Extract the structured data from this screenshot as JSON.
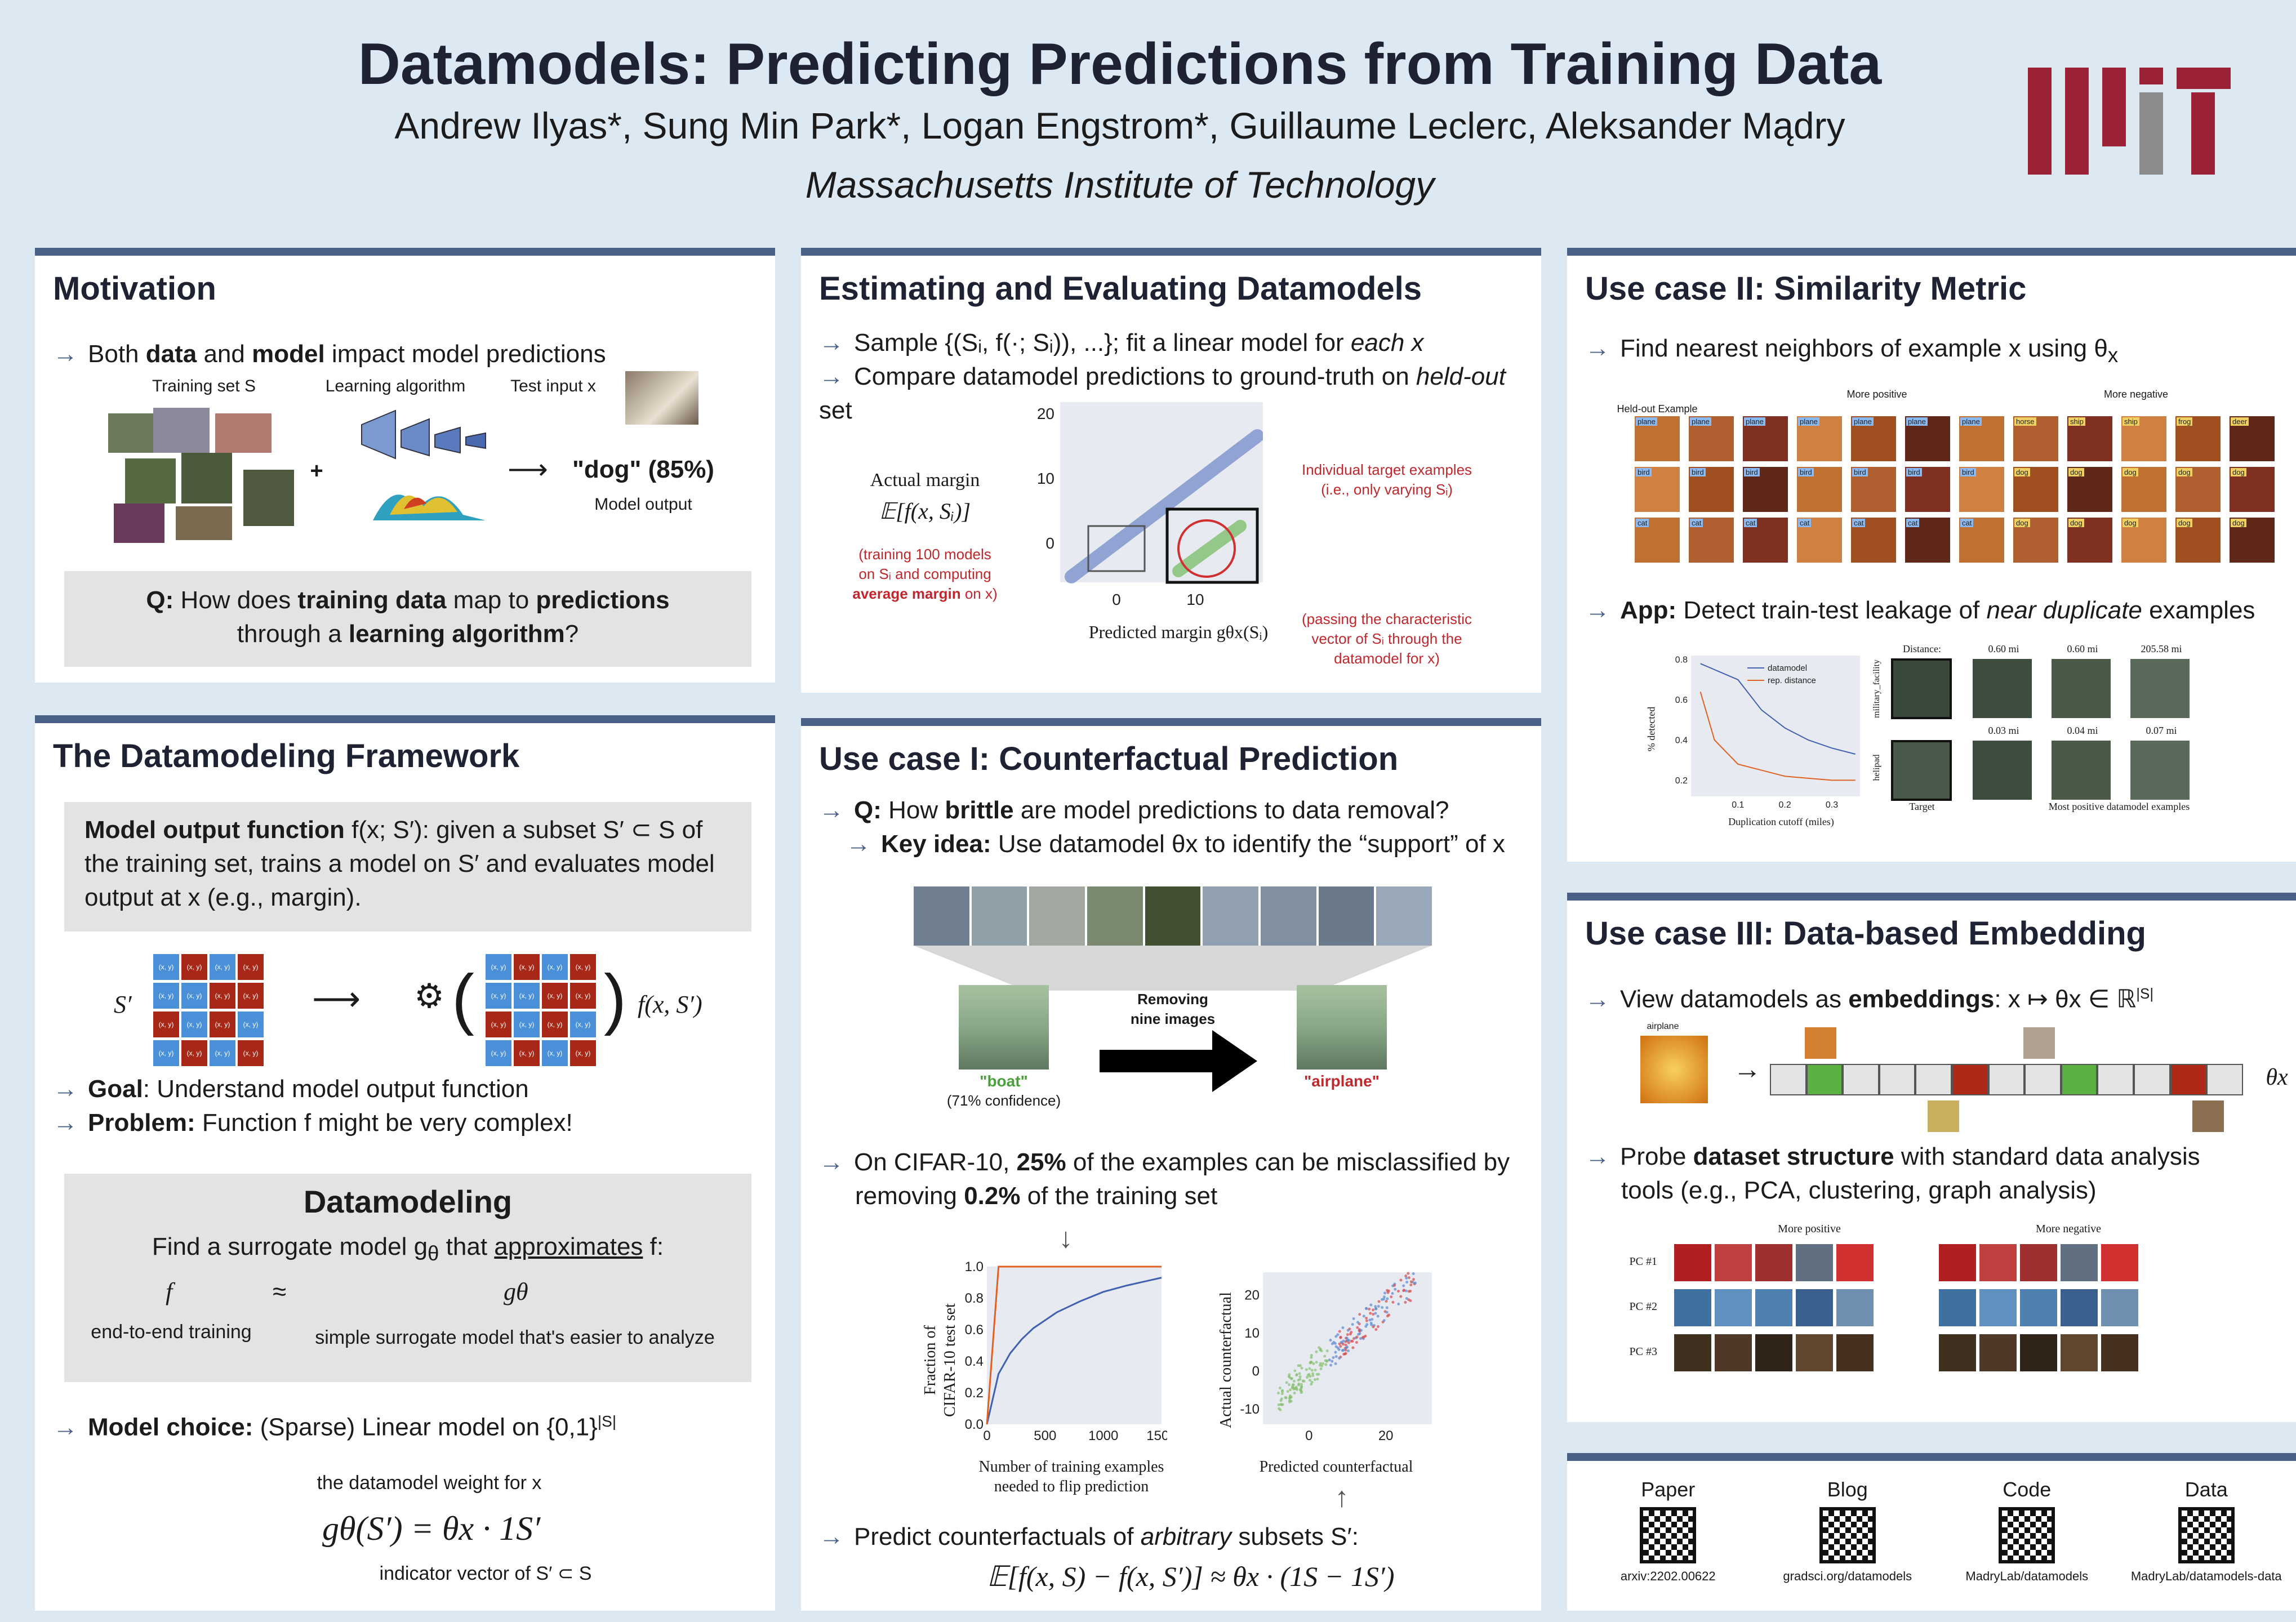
{
  "header": {
    "title": "Datamodels: Predicting Predictions from Training Data",
    "authors": "Andrew Ilyas*, Sung Min Park*, Logan Engstrom*, Guillaume Leclerc, Aleksander Mądry",
    "institution": "Massachusetts Institute of Technology",
    "logo": "mit-logo",
    "colors": {
      "logo_red": "#9c2337",
      "logo_gray": "#8b8b8b",
      "accent": "#4a6088",
      "background": "#dce8f2"
    }
  },
  "motivation": {
    "title": "Motivation",
    "bullet_pre": "Both ",
    "bullet_b1": "data",
    "bullet_mid": " and ",
    "bullet_b2": "model",
    "bullet_post": " impact model predictions",
    "label_training": "Training set S",
    "label_algorithm": "Learning algorithm",
    "label_test": "Test input x",
    "plus": "+",
    "output": "\"dog\" (85%)",
    "output_label": "Model output",
    "q_label": "Q:",
    "q_pre": " How does ",
    "q_b1": "training data",
    "q_mid": " map to ",
    "q_b2": "predictions",
    "q_line2_pre": "through a ",
    "q_b3": "learning algorithm",
    "q_line2_post": "?"
  },
  "framework": {
    "title": "The Datamodeling Framework",
    "box_b": "Model output function",
    "box_fn": " f(x; S′)",
    "box_line1": ": given a subset S′ ⊂ S of",
    "box_line2": "the training set, trains a model on S′ and evaluates model",
    "box_line3": "output at x (e.g., margin).",
    "s_prime": "S′",
    "fx": "f(x, S′)",
    "cell": "(x, y)",
    "goal_b": "Goal",
    "goal": ": Understand model output function",
    "problem_b": "Problem:",
    "problem": " Function f might be very complex!",
    "dm_title": "Datamodeling",
    "dm_line_pre": "Find a surrogate model g",
    "dm_sub": "θ",
    "dm_line_mid": " that ",
    "dm_line_u": "approximates",
    "dm_line_post": " f:",
    "dm_f": "f",
    "dm_approx": "≈",
    "dm_g": "gθ",
    "dm_f_label": "end-to-end training",
    "dm_g_label": "simple surrogate model that's easier to analyze",
    "choice_b": "Model choice:",
    "choice": " (Sparse) Linear model on {0,1}",
    "choice_sup": "|S|",
    "weight_label": "the datamodel weight for x",
    "formula": "gθ(S′) = θx · 1S′",
    "indicator_label": "indicator vector of S′ ⊂ S"
  },
  "estimating": {
    "title": "Estimating and Evaluating Datamodels",
    "b1_pre": "Sample {(Sᵢ, f(·; Sᵢ)), ...}; fit a linear model for ",
    "b1_i": "each x",
    "b2_pre": "Compare datamodel predictions to ground-truth on ",
    "b2_i": "held-out",
    "b2_post": " set",
    "ylabel": "Actual margin",
    "ylabel2": "𝔼[f(x, Sᵢ)]",
    "note_left_1": "(training 100 models",
    "note_left_2": "on Sᵢ and computing",
    "note_left_3": "average margin",
    "note_left_4": " on x)",
    "xlabel": "Predicted margin gθx(Sᵢ)",
    "note_right_top_1": "Individual target examples",
    "note_right_top_2": "(i.e., only varying Sᵢ)",
    "note_right_bot_1": "(passing the characteristic",
    "note_right_bot_2": "vector of Sᵢ through the",
    "note_right_bot_3": "datamodel for x)",
    "yticks": [
      "20",
      "10",
      "0"
    ],
    "xticks": [
      "0",
      "10"
    ]
  },
  "counterfactual": {
    "title": "Use case I: Counterfactual Prediction",
    "q_b": "Q:",
    "q_pre": " How ",
    "q_b2": "brittle",
    "q_post": " are model predictions to data removal?",
    "key_b": "Key idea:",
    "key": " Use datamodel θx to identify the “support” of x",
    "removing": "Removing",
    "nine": "nine images",
    "boat": "\"boat\"",
    "boat_conf": "(71% confidence)",
    "airplane": "\"airplane\"",
    "cifar_pre": "On CIFAR-10, ",
    "cifar_b1": "25%",
    "cifar_mid": " of the examples can be misclassified by",
    "cifar_line2_pre": "removing ",
    "cifar_b2": "0.2%",
    "cifar_line2_post": " of the training set",
    "chart1_ylabel_1": "Fraction of",
    "chart1_ylabel_2": "CIFAR-10 test set",
    "chart1_xlabel_1": "Number of training examples",
    "chart1_xlabel_2": "needed to flip prediction",
    "chart2_ylabel": "Actual counterfactual",
    "chart2_xlabel": "Predicted counterfactual",
    "predict_pre": "Predict counterfactuals of ",
    "predict_i": "arbitrary",
    "predict_post": " subsets S′:",
    "formula": "𝔼[f(x, S) − f(x, S′)] ≈ θx · (1S − 1S′)"
  },
  "chart_data": [
    {
      "type": "line",
      "x": [
        0,
        100,
        200,
        300,
        400,
        500,
        600,
        800,
        1000,
        1200,
        1500
      ],
      "series": [
        {
          "values": [
            0.0,
            0.32,
            0.45,
            0.54,
            0.61,
            0.66,
            0.71,
            0.78,
            0.84,
            0.88,
            0.93
          ]
        },
        {
          "values": [
            0.0,
            1.0,
            1.0,
            1.0,
            1.0,
            1.0,
            1.0,
            1.0,
            1.0,
            1.0,
            1.0
          ]
        }
      ],
      "xticks": [
        "0",
        "500",
        "1000",
        "1500"
      ],
      "yticks": [
        "0.0",
        "0.2",
        "0.4",
        "0.6",
        "0.8",
        "1.0"
      ],
      "xlim": [
        0,
        1500
      ],
      "ylim": [
        0,
        1
      ],
      "colors": [
        "#4060b0",
        "#e06020"
      ]
    },
    {
      "type": "scatter",
      "xticks": [
        "0",
        "20"
      ],
      "yticks": [
        "-10",
        "0",
        "10",
        "20"
      ],
      "xlim": [
        -12,
        32
      ],
      "ylim": [
        -14,
        26
      ],
      "colors": [
        "#d84848",
        "#5a8ad0",
        "#88c070"
      ]
    },
    {
      "type": "line",
      "x": [
        0.02,
        0.05,
        0.1,
        0.15,
        0.2,
        0.25,
        0.3,
        0.35
      ],
      "series": [
        {
          "name": "datamodel",
          "values": [
            0.78,
            0.75,
            0.7,
            0.55,
            0.46,
            0.4,
            0.36,
            0.33
          ]
        },
        {
          "name": "rep. distance",
          "values": [
            0.64,
            0.4,
            0.28,
            0.25,
            0.22,
            0.21,
            0.2,
            0.2
          ]
        }
      ],
      "xticks": [
        "0.1",
        "0.2",
        "0.3"
      ],
      "yticks": [
        "0.2",
        "0.4",
        "0.6",
        "0.8"
      ],
      "xlim": [
        0,
        0.36
      ],
      "ylim": [
        0.12,
        0.82
      ],
      "colors": [
        "#4060b0",
        "#e06020"
      ]
    }
  ],
  "similarity": {
    "title": "Use case II: Similarity Metric",
    "b1_pre": "Find nearest neighbors of example x using θ",
    "b1_sub": "x",
    "heldout": "Held-out Example",
    "more_pos": "More positive",
    "more_neg": "More negative",
    "app_b": "App:",
    "app_pre": " Detect train-test leakage of ",
    "app_i": "near duplicate",
    "app_post": " examples",
    "pos_labels": [
      "plane",
      "plane",
      "plane",
      "plane",
      "plane",
      "plane"
    ],
    "neg_labels": [
      "horse",
      "ship",
      "ship",
      "frog",
      "deer"
    ],
    "chart_ylabel": "% detected",
    "chart_xlabel": "Duplication cutoff (miles)",
    "distance_label": "Distance:",
    "dists_top": [
      "0.60 mi",
      "0.60 mi",
      "205.58 mi"
    ],
    "dists_bot": [
      "0.03 mi",
      "0.04 mi",
      "0.07 mi"
    ],
    "row_label_1": "military_facility",
    "row_label_2": "helipad",
    "target": "Target",
    "most_pos": "Most positive datamodel examples"
  },
  "embedding": {
    "title": "Use case III: Data-based Embedding",
    "b1_pre": "View datamodels as ",
    "b1_b": "embeddings",
    "b1_post": ": x ↦ θx ∈ ℝ",
    "b1_sup": "|S|",
    "airplane": "airplane",
    "theta": "θx",
    "b2_pre": "Probe ",
    "b2_b": "dataset structure",
    "b2_post": " with standard data analysis",
    "b2_line2": "tools (e.g., PCA, clustering, graph analysis)",
    "more_pos": "More positive",
    "more_neg": "More negative",
    "pcs": [
      "PC #1",
      "PC #2",
      "PC #3"
    ]
  },
  "links": [
    {
      "title": "Paper",
      "url": "arxiv:2202.00622"
    },
    {
      "title": "Blog",
      "url": "gradsci.org/datamodels"
    },
    {
      "title": "Code",
      "url": "MadryLab/datamodels"
    },
    {
      "title": "Data",
      "url": "MadryLab/datamodels-data"
    }
  ]
}
